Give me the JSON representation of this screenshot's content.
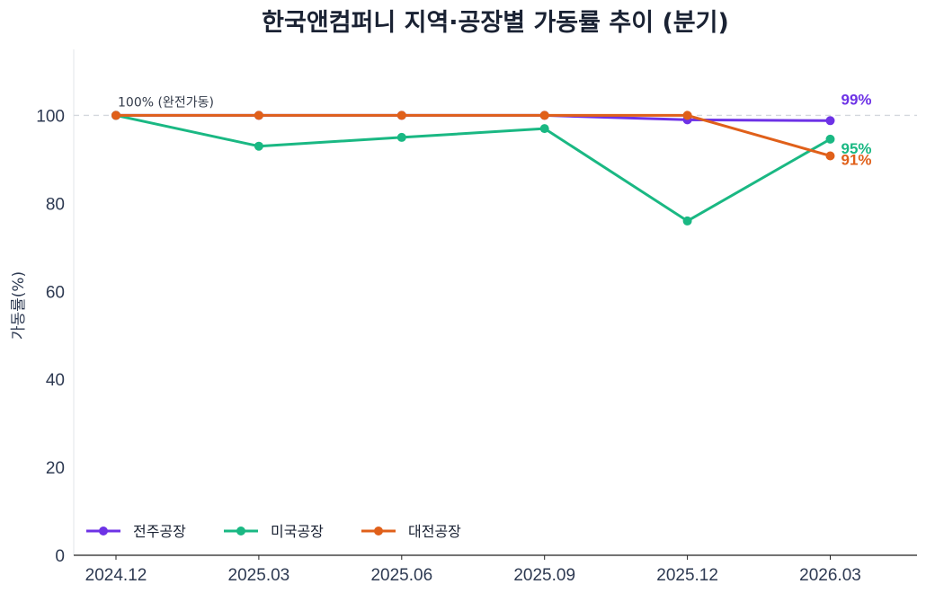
{
  "chart_data": {
    "type": "line",
    "title": "한국앤컴퍼니 지역·공장별 가동률 추이 (분기)",
    "xlabel": "",
    "ylabel": "가동률(%)",
    "categories": [
      "2024.12",
      "2025.03",
      "2025.06",
      "2025.09",
      "2025.12",
      "2026.03"
    ],
    "ylim": [
      0,
      115
    ],
    "yticks": [
      0,
      20,
      40,
      60,
      80,
      100
    ],
    "grid": false,
    "reference_line": {
      "y": 100,
      "label": "100% (완전가동)"
    },
    "legend_position": "bottom-left",
    "series": [
      {
        "name": "전주공장",
        "color": "#6d32e6",
        "values": [
          100,
          100,
          100,
          100,
          99,
          98.8
        ],
        "end_label": "99%"
      },
      {
        "name": "미국공장",
        "color": "#1ab883",
        "values": [
          100,
          93,
          95,
          97,
          76,
          94.6
        ],
        "end_label": "95%"
      },
      {
        "name": "대전공장",
        "color": "#e0601a",
        "values": [
          100,
          100,
          100,
          100,
          100,
          90.8
        ],
        "end_label": "91%"
      }
    ]
  }
}
